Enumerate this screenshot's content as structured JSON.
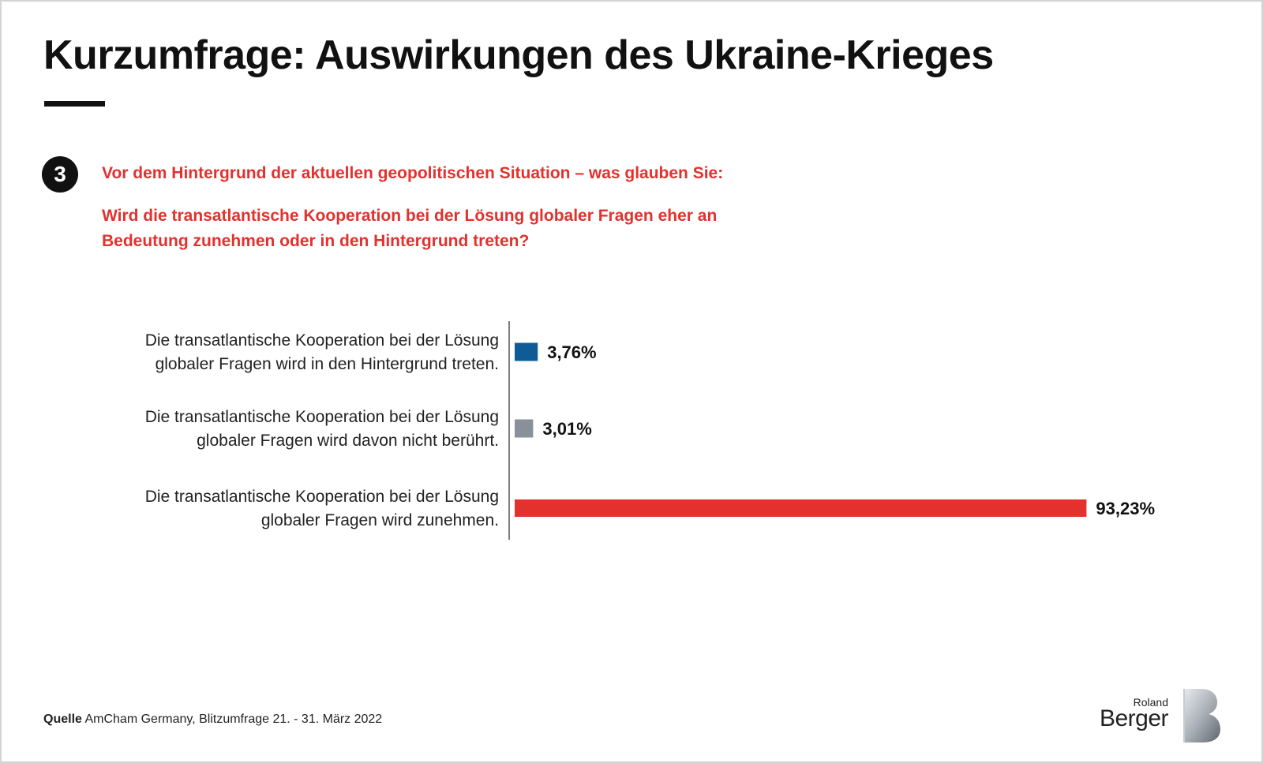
{
  "title": "Kurzumfrage: Auswirkungen des Ukraine-Krieges",
  "question": {
    "number": "3",
    "intro": "Vor dem Hintergrund der aktuellen geopolitischen Situation – was glauben Sie:",
    "text": "Wird die transatlantische Kooperation bei der Lösung globaler Fragen eher an Bedeutung zunehmen oder in den Hintergrund treten?"
  },
  "source": {
    "label": "Quelle",
    "text": "AmCham Germany, Blitzumfrage 21. - 31. März 2022"
  },
  "logo": {
    "line1": "Roland",
    "line2": "Berger"
  },
  "colors": {
    "accent": "#e3312e",
    "blue": "#0f5b95",
    "gray": "#8a9099",
    "text": "#111111"
  },
  "chart_data": {
    "type": "bar",
    "orientation": "horizontal",
    "categories": [
      [
        "Die transatlantische Kooperation bei der Lösung",
        "globaler Fragen wird in den Hintergrund treten."
      ],
      [
        "Die transatlantische Kooperation bei der Lösung",
        "globaler Fragen wird davon nicht berührt."
      ],
      [
        "Die transatlantische Kooperation bei der Lösung",
        "globaler Fragen wird zunehmen."
      ]
    ],
    "values": [
      3.76,
      3.01,
      93.23
    ],
    "value_labels": [
      "3,76%",
      "3,01%",
      "93,23%"
    ],
    "bar_colors": [
      "#0f5b95",
      "#8a9099",
      "#e3312e"
    ],
    "unit": "%",
    "xlim": [
      0,
      100
    ],
    "grid": false,
    "legend": "none"
  }
}
